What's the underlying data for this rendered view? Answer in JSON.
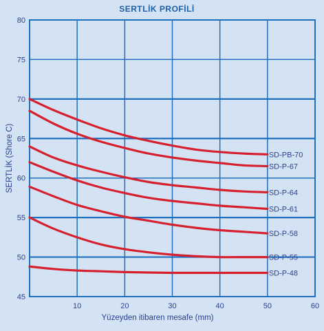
{
  "chart_data": {
    "type": "line",
    "title": "SERTLİK PROFİLİ",
    "xlabel": "Yüzeyden itibaren mesafe (mm)",
    "ylabel": "SERTLİK (Shore C)",
    "xlim": [
      0,
      60
    ],
    "ylim": [
      45,
      80
    ],
    "x_ticks": [
      10,
      20,
      30,
      40,
      50,
      60
    ],
    "y_ticks": [
      45,
      50,
      55,
      60,
      65,
      70,
      75,
      80
    ],
    "grid": true,
    "series": [
      {
        "name": "SD-PB-70",
        "x": [
          0,
          5,
          10,
          15,
          20,
          25,
          30,
          35,
          40,
          45,
          50
        ],
        "y": [
          70,
          68.6,
          67.4,
          66.3,
          65.4,
          64.7,
          64.1,
          63.6,
          63.3,
          63.1,
          63.0
        ]
      },
      {
        "name": "SD-P-67",
        "x": [
          0,
          5,
          10,
          15,
          20,
          25,
          30,
          35,
          40,
          45,
          50
        ],
        "y": [
          68.5,
          66.9,
          65.6,
          64.6,
          63.8,
          63.1,
          62.6,
          62.2,
          61.9,
          61.6,
          61.5
        ]
      },
      {
        "name": "SD-P-64",
        "x": [
          0,
          5,
          10,
          15,
          20,
          25,
          30,
          35,
          40,
          45,
          50
        ],
        "y": [
          64.0,
          62.6,
          61.6,
          60.8,
          60.1,
          59.5,
          59.1,
          58.8,
          58.5,
          58.3,
          58.2
        ]
      },
      {
        "name": "SD-P-61",
        "x": [
          0,
          5,
          10,
          15,
          20,
          25,
          30,
          35,
          40,
          45,
          50
        ],
        "y": [
          62.0,
          60.8,
          59.7,
          58.8,
          58.1,
          57.5,
          57.1,
          56.8,
          56.5,
          56.3,
          56.1
        ]
      },
      {
        "name": "SD-P-58",
        "x": [
          0,
          5,
          10,
          15,
          20,
          25,
          30,
          35,
          40,
          45,
          50
        ],
        "y": [
          58.9,
          57.7,
          56.6,
          55.8,
          55.1,
          54.6,
          54.1,
          53.7,
          53.4,
          53.2,
          53.0
        ]
      },
      {
        "name": "SD-P-55",
        "x": [
          0,
          5,
          10,
          15,
          20,
          25,
          30,
          35,
          40,
          45,
          50
        ],
        "y": [
          55.0,
          53.6,
          52.5,
          51.6,
          51.0,
          50.6,
          50.3,
          50.1,
          50.0,
          50.0,
          50.0
        ]
      },
      {
        "name": "SD-P-48",
        "x": [
          0,
          5,
          10,
          15,
          20,
          25,
          30,
          35,
          40,
          45,
          50
        ],
        "y": [
          48.8,
          48.5,
          48.3,
          48.2,
          48.1,
          48.05,
          48.0,
          48.0,
          48.0,
          48.0,
          48.0
        ]
      }
    ],
    "line_color": "#d6202e",
    "grid_color": "#1f6fbf",
    "thick_grid_y": [
      50,
      55,
      65,
      70
    ]
  }
}
